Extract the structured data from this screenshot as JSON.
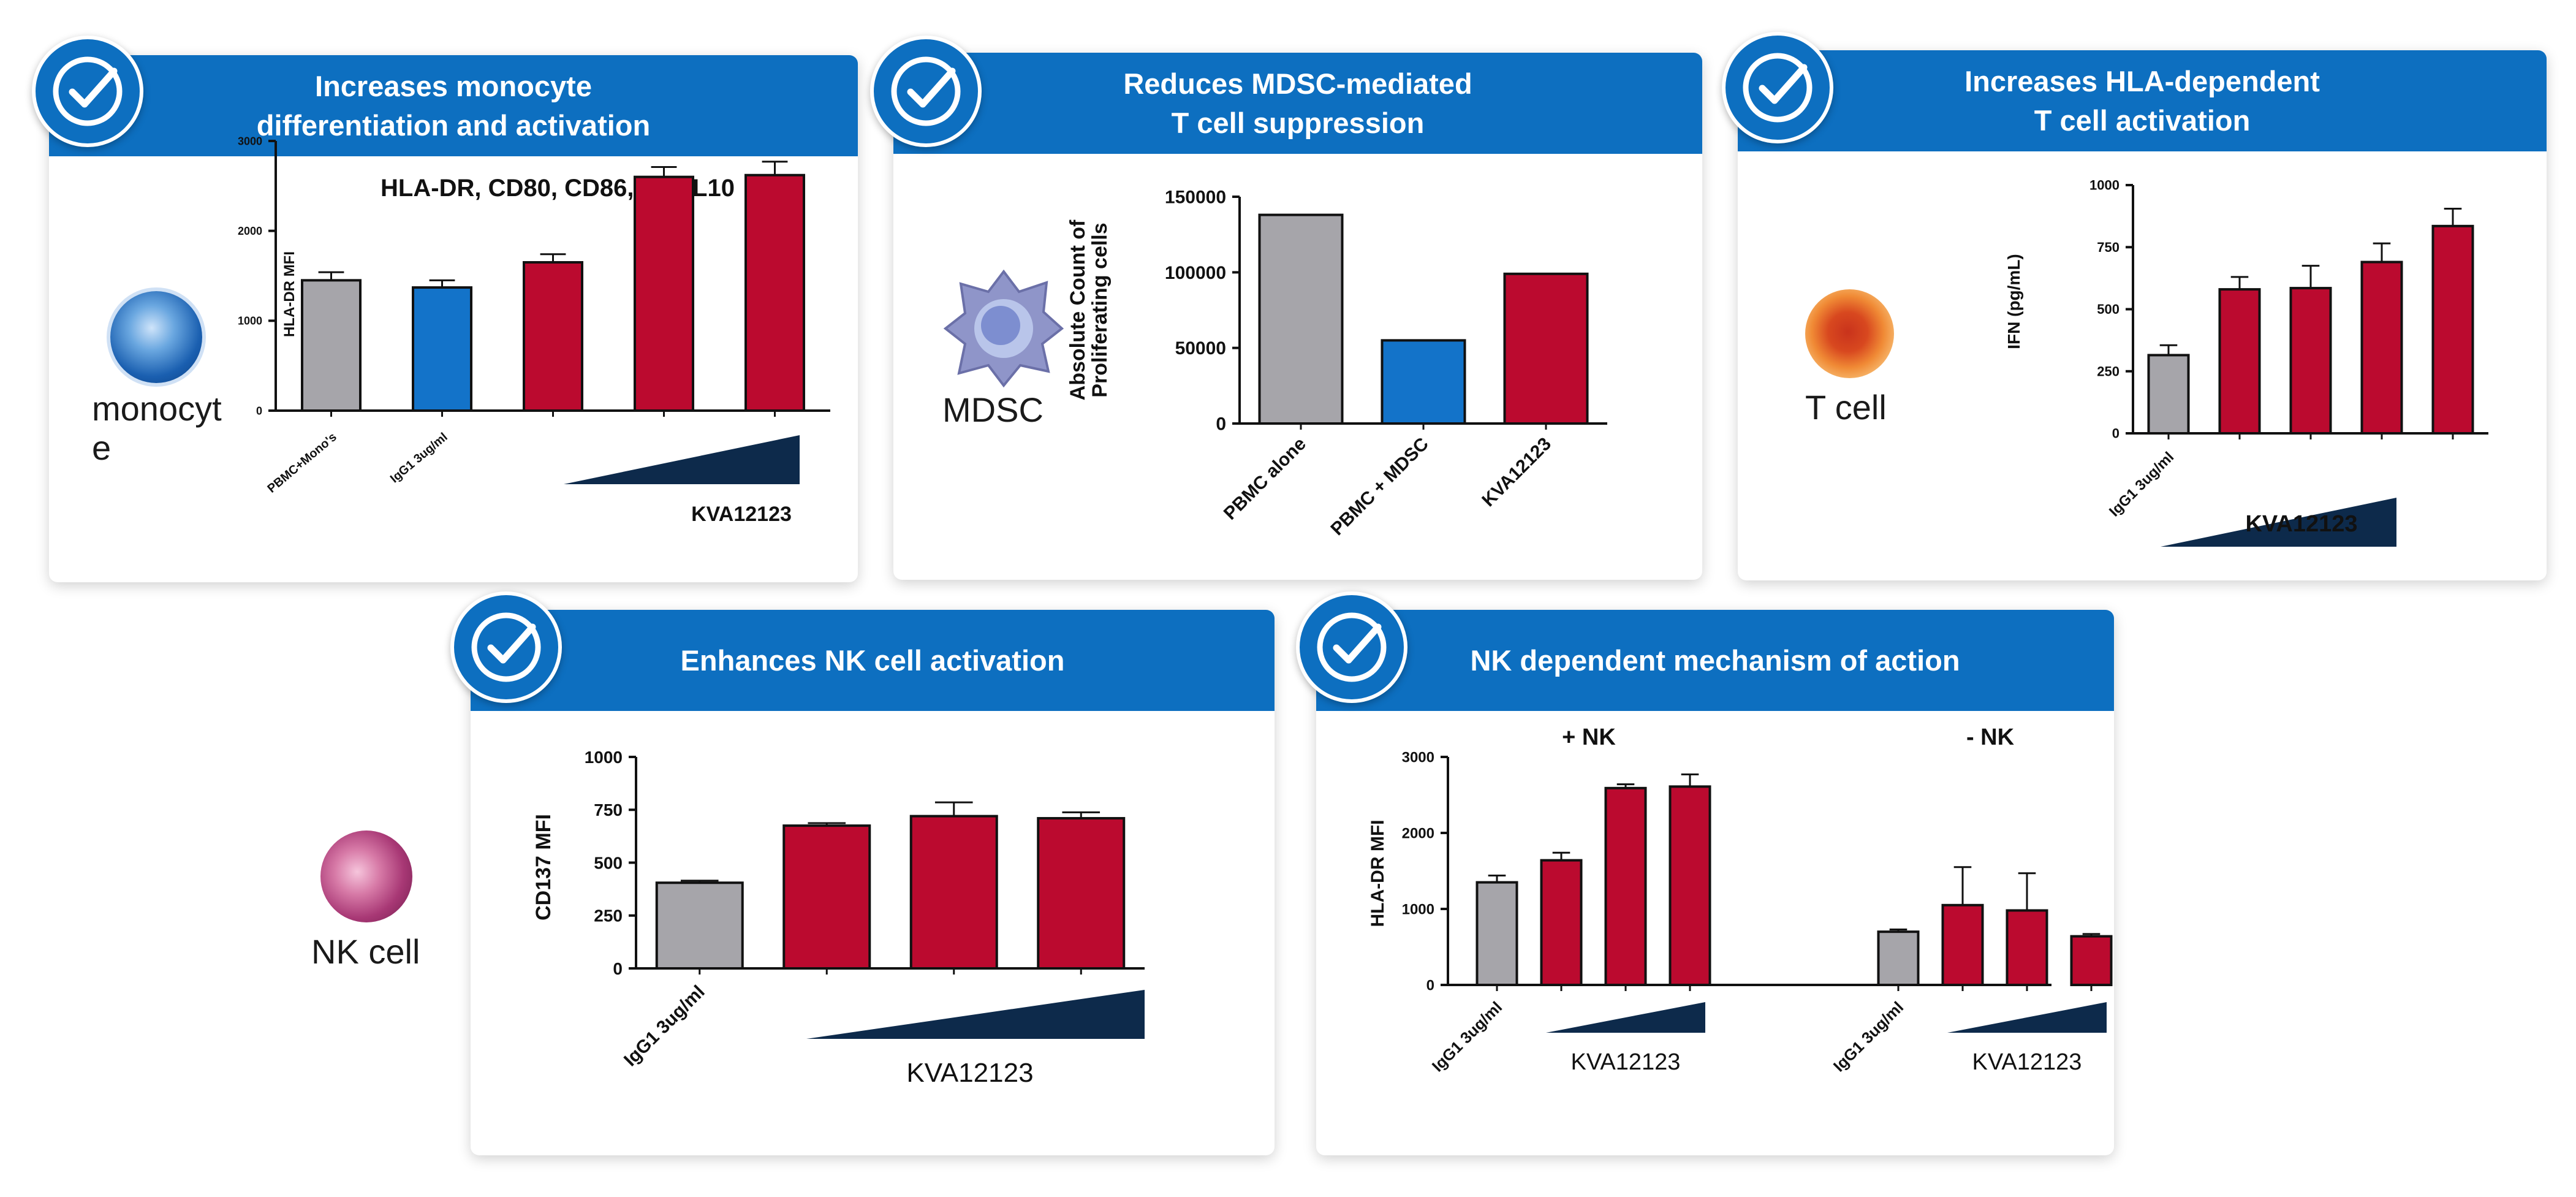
{
  "colors": {
    "header": "#0d6fc0",
    "gray": "#a6a5aa",
    "blue": "#1373c9",
    "red": "#bb0a2f",
    "ramp": "#0d2a4b"
  },
  "panels": [
    {
      "id": "p1",
      "title": "Increases monocyte\ndifferentiation and activation",
      "cell": "monocyt\ne",
      "cell_icon": "monocyte-icon"
    },
    {
      "id": "p2",
      "title": "Reduces MDSC-mediated\nT cell suppression",
      "cell": "MDSC",
      "cell_icon": "mdsc-icon"
    },
    {
      "id": "p3",
      "title": "Increases HLA-dependent\nT cell activation",
      "cell": "T cell",
      "cell_icon": "t-cell-icon"
    },
    {
      "id": "p4",
      "title": "Enhances NK cell activation",
      "cell": "NK cell",
      "cell_icon": "nk-cell-icon"
    },
    {
      "id": "p5",
      "title": "NK dependent mechanism of action",
      "cell": "",
      "cell_icon": ""
    }
  ],
  "chart_data": [
    {
      "type": "bar",
      "panel": "p1",
      "title": "HLA-DR, CD80, CD86, CXCL10",
      "ylabel": "HLA-DR MFI",
      "ylim": [
        0,
        3000
      ],
      "yticks": [
        "0",
        "1000",
        "2000",
        "3000"
      ],
      "categories": [
        "PBMC+Mono's",
        "IgG1 3ug/ml",
        "",
        "",
        ""
      ],
      "values": [
        1450,
        1370,
        1650,
        2600,
        2620
      ],
      "errors": [
        90,
        80,
        90,
        110,
        150
      ],
      "colors": [
        "gray",
        "blue",
        "red",
        "red",
        "red"
      ],
      "dose_label": "KVA12123"
    },
    {
      "type": "bar",
      "panel": "p2",
      "title": "",
      "ylabel": "Absolute Count of\nProliferating cells",
      "ylim": [
        0,
        150000
      ],
      "yticks": [
        "0",
        "50000",
        "100000",
        "150000"
      ],
      "categories": [
        "PBMC alone",
        "PBMC + MDSC",
        "KVA12123"
      ],
      "values": [
        138000,
        55000,
        99000
      ],
      "errors": [
        0,
        0,
        0
      ],
      "colors": [
        "gray",
        "blue",
        "red"
      ],
      "dose_label": ""
    },
    {
      "type": "bar",
      "panel": "p3",
      "title": "",
      "ylabel": "IFN    (pg/mL)",
      "ylim": [
        0,
        1000
      ],
      "yticks": [
        "0",
        "250",
        "500",
        "750",
        "1000"
      ],
      "categories": [
        "IgG1 3ug/ml",
        "",
        "",
        "",
        ""
      ],
      "values": [
        315,
        580,
        585,
        690,
        835
      ],
      "errors": [
        40,
        50,
        90,
        75,
        70
      ],
      "colors": [
        "gray",
        "red",
        "red",
        "red",
        "red"
      ],
      "dose_label": "KVA12123"
    },
    {
      "type": "bar",
      "panel": "p4",
      "title": "",
      "ylabel": "CD137 MFI",
      "ylim": [
        0,
        1000
      ],
      "yticks": [
        "0",
        "250",
        "500",
        "750",
        "1000"
      ],
      "categories": [
        "IgG1 3ug/ml",
        "",
        "",
        ""
      ],
      "values": [
        405,
        675,
        720,
        710
      ],
      "errors": [
        10,
        12,
        65,
        28
      ],
      "colors": [
        "gray",
        "red",
        "red",
        "red"
      ],
      "dose_label": "KVA12123"
    },
    {
      "type": "bar",
      "panel": "p5",
      "title": "",
      "ylabel": "HLA-DR MFI",
      "ylim": [
        0,
        3000
      ],
      "yticks": [
        "0",
        "1000",
        "2000",
        "3000"
      ],
      "groups": [
        {
          "name": "+ NK",
          "categories": [
            "IgG1 3ug/ml",
            "",
            "",
            ""
          ],
          "values": [
            1350,
            1640,
            2590,
            2610
          ],
          "errors": [
            90,
            100,
            50,
            160
          ]
        },
        {
          "name": "- NK",
          "categories": [
            "IgG1 3ug/ml",
            "",
            "",
            ""
          ],
          "values": [
            700,
            1050,
            980,
            640
          ],
          "errors": [
            30,
            500,
            490,
            30
          ]
        }
      ],
      "colors": [
        "gray",
        "red",
        "red",
        "red"
      ],
      "dose_label": "KVA12123"
    }
  ]
}
